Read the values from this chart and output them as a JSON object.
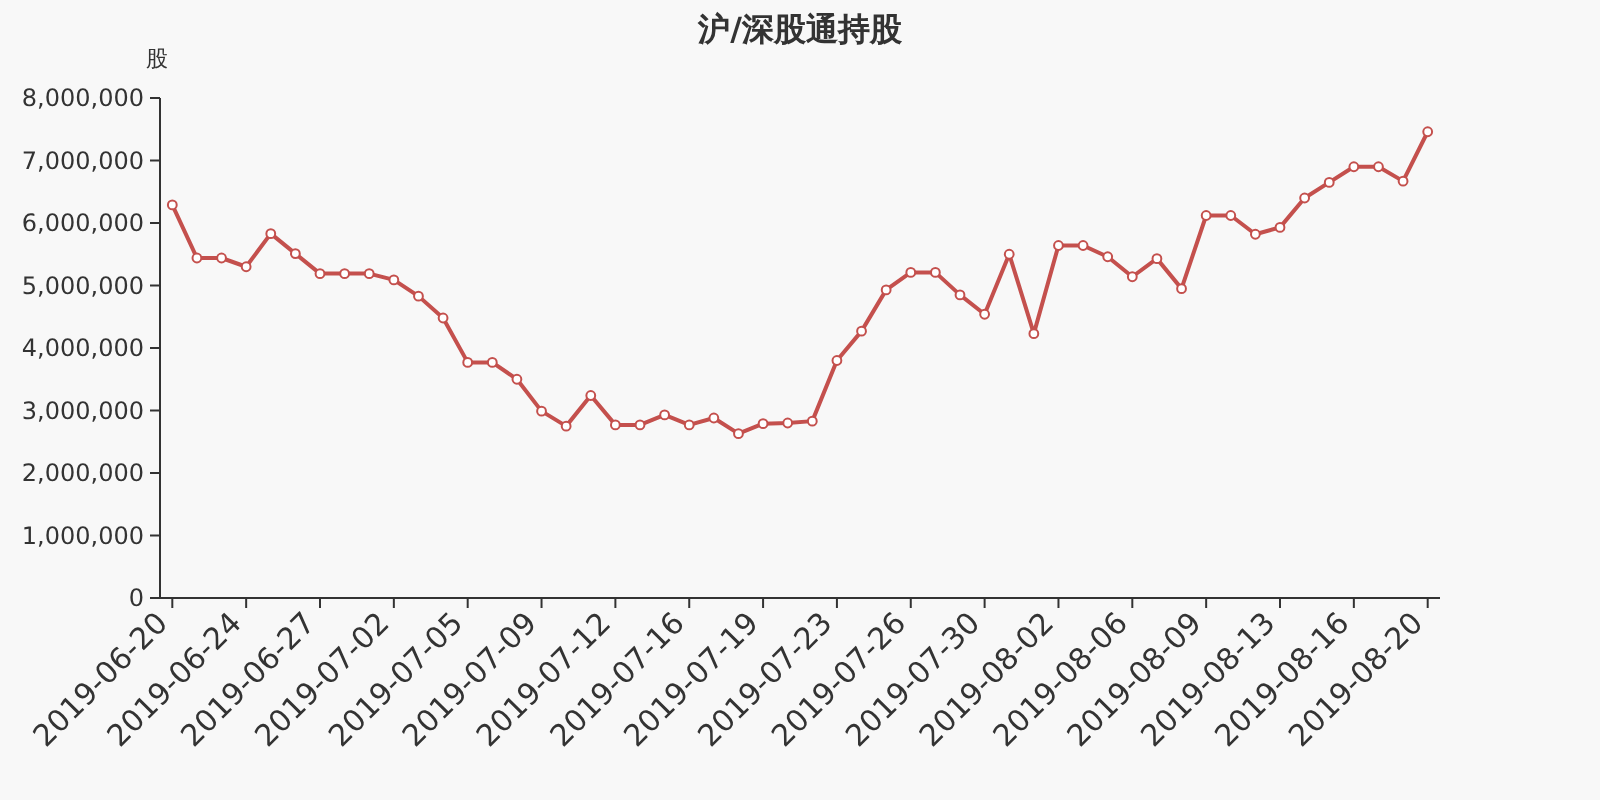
{
  "chart_data": {
    "type": "line",
    "title": "沪/深股通持股",
    "ylabel": "股",
    "categories": [
      "2019-06-20",
      null,
      null,
      "2019-06-24",
      null,
      null,
      "2019-06-27",
      null,
      null,
      "2019-07-02",
      null,
      null,
      "2019-07-05",
      null,
      null,
      "2019-07-09",
      null,
      null,
      "2019-07-12",
      null,
      null,
      "2019-07-16",
      null,
      null,
      "2019-07-19",
      null,
      null,
      "2019-07-23",
      null,
      null,
      "2019-07-26",
      null,
      null,
      "2019-07-30",
      null,
      null,
      "2019-08-02",
      null,
      null,
      "2019-08-06",
      null,
      null,
      "2019-08-09",
      null,
      null,
      "2019-08-13",
      null,
      null,
      "2019-08-16",
      null,
      null,
      "2019-08-20"
    ],
    "series": [
      {
        "color": "#c4504d",
        "values": [
          6290000,
          5440000,
          5440000,
          5300000,
          5830000,
          5510000,
          5190000,
          5190000,
          5190000,
          5090000,
          4830000,
          4480000,
          3770000,
          3770000,
          3500000,
          2990000,
          2750000,
          3240000,
          2770000,
          2770000,
          2930000,
          2770000,
          2880000,
          2630000,
          2790000,
          2800000,
          2830000,
          3800000,
          4270000,
          4930000,
          5210000,
          5210000,
          4850000,
          4540000,
          5500000,
          4230000,
          5640000,
          5640000,
          5460000,
          5140000,
          5430000,
          4950000,
          6120000,
          6120000,
          5820000,
          5930000,
          6400000,
          6650000,
          6900000,
          6900000,
          6670000,
          7460000
        ]
      }
    ],
    "ylim": [
      0,
      8000000
    ],
    "yticks": [
      {
        "value": 0,
        "label": "0"
      },
      {
        "value": 1000000,
        "label": "1,000,000"
      },
      {
        "value": 2000000,
        "label": "2,000,000"
      },
      {
        "value": 3000000,
        "label": "3,000,000"
      },
      {
        "value": 4000000,
        "label": "4,000,000"
      },
      {
        "value": 5000000,
        "label": "5,000,000"
      },
      {
        "value": 6000000,
        "label": "6,000,000"
      },
      {
        "value": 7000000,
        "label": "7,000,000"
      },
      {
        "value": 8000000,
        "label": "8,000,000"
      }
    ],
    "marker": "circle",
    "line_style": "solid"
  }
}
